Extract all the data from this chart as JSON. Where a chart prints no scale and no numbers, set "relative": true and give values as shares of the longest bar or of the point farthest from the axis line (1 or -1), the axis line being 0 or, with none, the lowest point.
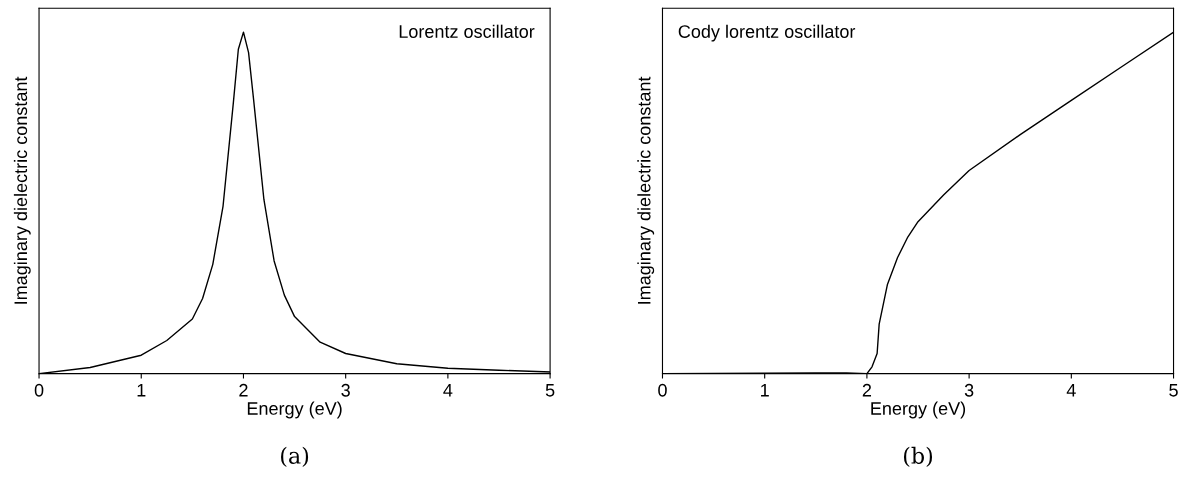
{
  "chart_data": [
    {
      "type": "line",
      "title": "Lorentz oscillator",
      "xlabel": "Energy (eV)",
      "ylabel": "Imaginary dielectric constant",
      "relative": true,
      "tick_labels": "x",
      "grid": false,
      "legend": false,
      "annotations": [
        "(a)"
      ],
      "xlim": [
        0,
        5
      ],
      "xticks": [
        0,
        1,
        2,
        3,
        4,
        5
      ],
      "series": [
        {
          "color": "#000000",
          "x": [
            0,
            0.5,
            1.0,
            1.25,
            1.5,
            1.6,
            1.7,
            1.8,
            1.9,
            1.95,
            2.0,
            2.05,
            2.1,
            2.2,
            2.3,
            2.4,
            2.5,
            2.75,
            3.0,
            3.5,
            4.0,
            4.5,
            5.0
          ],
          "values": [
            0,
            0.018,
            0.054,
            0.097,
            0.16,
            0.22,
            0.32,
            0.49,
            0.79,
            0.95,
            1.0,
            0.94,
            0.8,
            0.51,
            0.33,
            0.23,
            0.167,
            0.092,
            0.059,
            0.029,
            0.016,
            0.01,
            0.005
          ]
        }
      ]
    },
    {
      "type": "line",
      "title": "Cody lorentz oscillator",
      "xlabel": "Energy (eV)",
      "ylabel": "Imaginary dielectric constant",
      "relative": true,
      "tick_labels": "x",
      "grid": false,
      "legend": false,
      "annotations": [
        "(b)"
      ],
      "xlim": [
        0,
        5
      ],
      "xticks": [
        0,
        1,
        2,
        3,
        4,
        5
      ],
      "series": [
        {
          "color": "#000000",
          "x": [
            0,
            1.0,
            1.5,
            1.8,
            2.0,
            2.05,
            2.1,
            2.12,
            2.2,
            2.3,
            2.4,
            2.5,
            2.75,
            3.0,
            3.5,
            4.0,
            4.5,
            5.0
          ],
          "values": [
            0,
            0.001,
            0.002,
            0.002,
            0,
            0.02,
            0.059,
            0.145,
            0.26,
            0.34,
            0.4,
            0.445,
            0.523,
            0.595,
            0.7,
            0.8,
            0.9,
            1.0
          ]
        }
      ]
    }
  ]
}
